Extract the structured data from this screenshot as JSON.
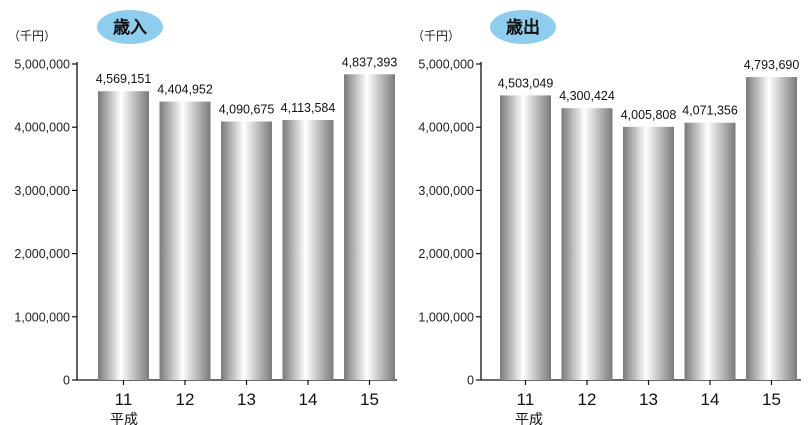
{
  "charts": [
    {
      "badge_label": "歳入",
      "unit_label": "（千円）",
      "era_label": "平成",
      "chart_data": {
        "type": "bar",
        "title": "歳入",
        "categories": [
          "11",
          "12",
          "13",
          "14",
          "15"
        ],
        "values": [
          4569151,
          4404952,
          4090675,
          4113584,
          4837393
        ],
        "data_labels": [
          "4,569,151",
          "4,404,952",
          "4,090,675",
          "4,113,584",
          "4,837,393"
        ],
        "ylim": [
          0,
          5000000
        ],
        "yticks": [
          0,
          1000000,
          2000000,
          3000000,
          4000000,
          5000000
        ],
        "ytick_labels": [
          "0",
          "1,000,000",
          "2,000,000",
          "3,000,000",
          "4,000,000",
          "5,000,000"
        ],
        "ylabel": "（千円）",
        "xlabel": "平成",
        "grid": false
      }
    },
    {
      "badge_label": "歳出",
      "unit_label": "（千円）",
      "era_label": "平成",
      "chart_data": {
        "type": "bar",
        "title": "歳出",
        "categories": [
          "11",
          "12",
          "13",
          "14",
          "15"
        ],
        "values": [
          4503049,
          4300424,
          4005808,
          4071356,
          4793690
        ],
        "data_labels": [
          "4,503,049",
          "4,300,424",
          "4,005,808",
          "4,071,356",
          "4,793,690"
        ],
        "ylim": [
          0,
          5000000
        ],
        "yticks": [
          0,
          1000000,
          2000000,
          3000000,
          4000000,
          5000000
        ],
        "ytick_labels": [
          "0",
          "1,000,000",
          "2,000,000",
          "3,000,000",
          "4,000,000",
          "5,000,000"
        ],
        "ylabel": "（千円）",
        "xlabel": "平成",
        "grid": false
      }
    }
  ],
  "colors": {
    "badge_fill": "#8fcdee",
    "bar_dark": "#7a7a7a",
    "bar_light": "#ffffff",
    "axis": "#111111"
  }
}
